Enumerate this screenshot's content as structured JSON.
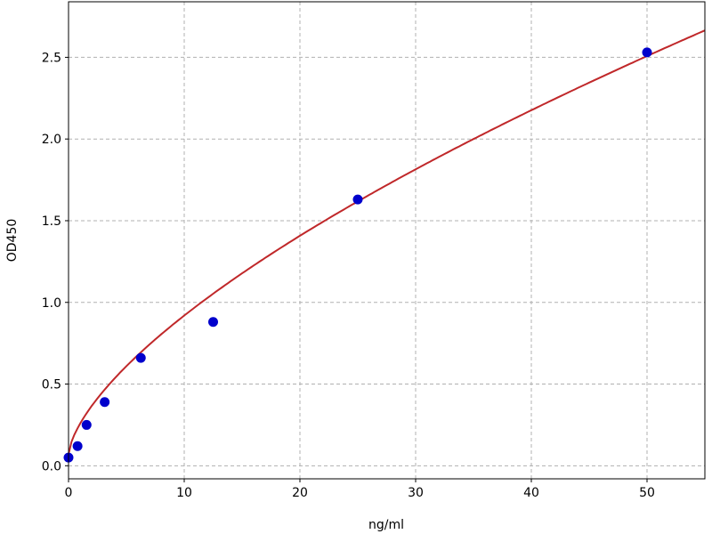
{
  "chart_data": {
    "type": "scatter",
    "title": "",
    "xlabel": "ng/ml",
    "ylabel": "OD450",
    "xlim": [
      0,
      55
    ],
    "ylim": [
      -0.08,
      2.84
    ],
    "xticks": [
      0,
      10,
      20,
      30,
      40,
      50
    ],
    "xtick_labels": [
      "0",
      "10",
      "20",
      "30",
      "40",
      "50"
    ],
    "yticks": [
      0.0,
      0.5,
      1.0,
      1.5,
      2.0,
      2.5
    ],
    "ytick_labels": [
      "0.0",
      "0.5",
      "1.0",
      "1.5",
      "2.0",
      "2.5"
    ],
    "grid": true,
    "points": {
      "x": [
        0,
        0.78,
        1.56,
        3.125,
        6.25,
        12.5,
        25,
        50
      ],
      "y": [
        0.05,
        0.12,
        0.25,
        0.39,
        0.66,
        0.88,
        1.63,
        2.53
      ],
      "color": "#0000cc"
    },
    "fit_curve": {
      "color": "#c0282a"
    }
  }
}
